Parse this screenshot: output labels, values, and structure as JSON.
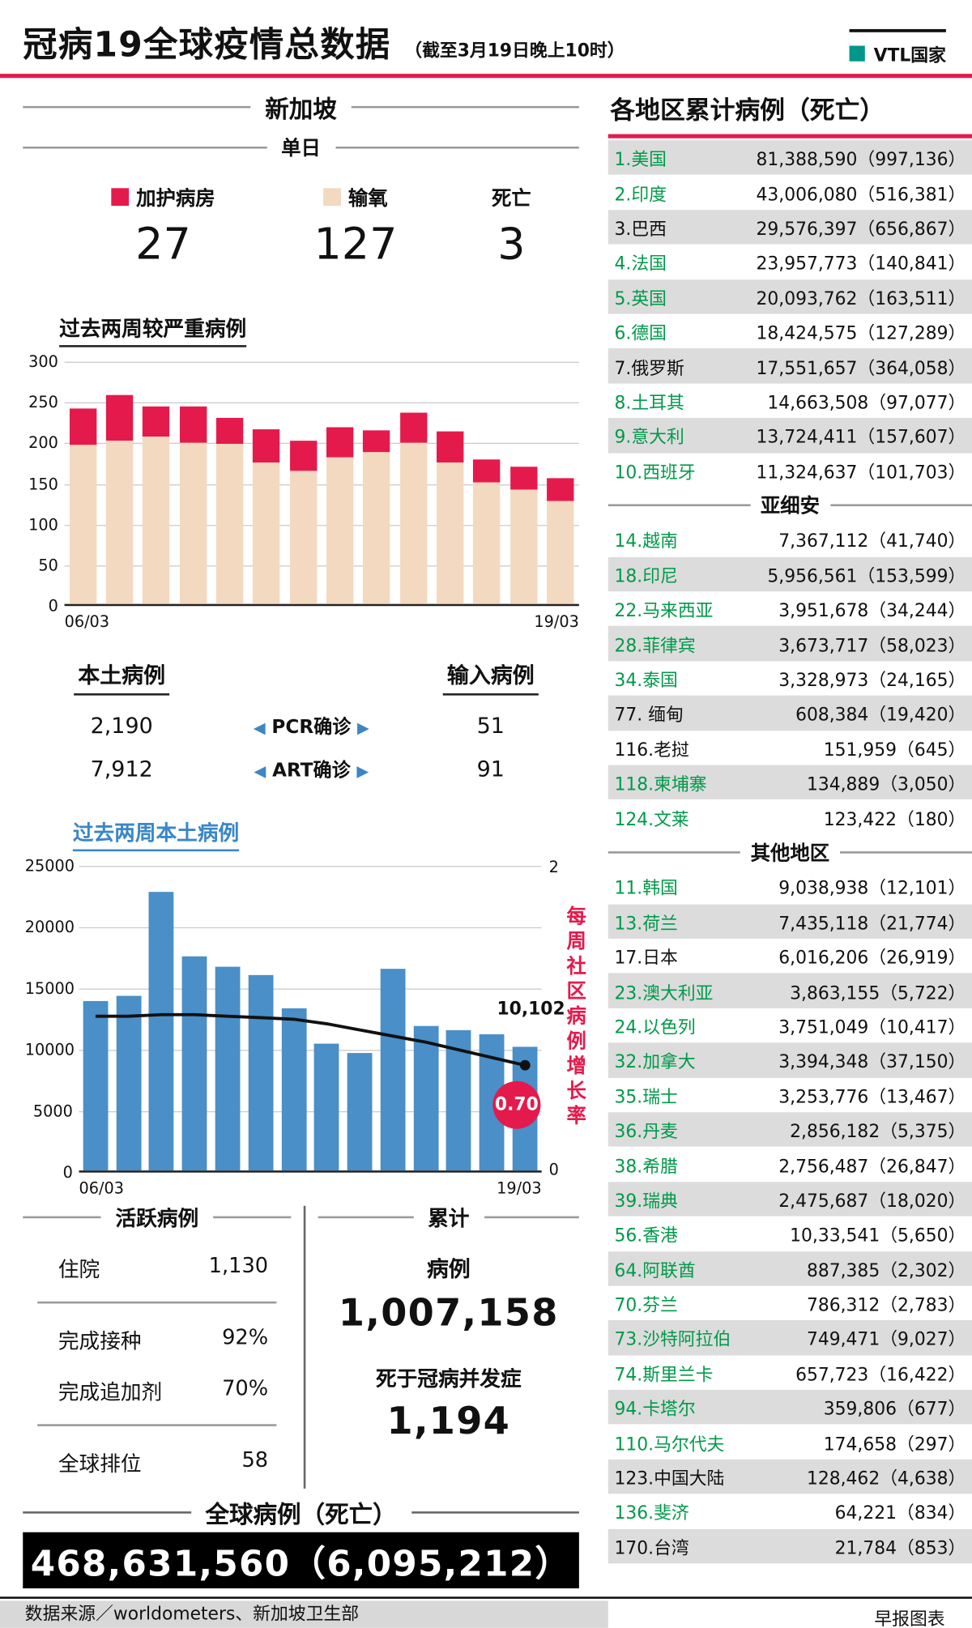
{
  "header": {
    "title": "冠病19全球疫情总数据",
    "subtitle": "（截至3月19日晚上10时）",
    "legend_label": "VTL国家"
  },
  "colors": {
    "accent_red": "#e51a4c",
    "oxygen_beige": "#f3d9bf",
    "bar_blue": "#4a8fc7",
    "arrow_blue": "#3d86c6",
    "vtl_green_text": "#009a49",
    "vtl_square": "#00968a",
    "stripe_gray": "#dcdcdc"
  },
  "singapore": {
    "section_title": "新加坡",
    "daily_title": "单日",
    "daily_stats": [
      {
        "label": "加护病房",
        "value": "27",
        "color": "#e51a4c",
        "icon": "icu-legend-square"
      },
      {
        "label": "输氧",
        "value": "127",
        "color": "#f3d9bf",
        "icon": "oxygen-legend-square"
      },
      {
        "label": "死亡",
        "value": "3"
      }
    ],
    "cases": {
      "local_title": "本土病例",
      "imported_title": "输入病例",
      "arrow_left": "◀",
      "arrow_right": "▶",
      "rows": [
        {
          "local": "2,190",
          "label": "PCR确诊",
          "imported": "51"
        },
        {
          "local": "7,912",
          "label": "ART确诊",
          "imported": "91"
        }
      ]
    },
    "active": {
      "title": "活跃病例",
      "groups": [
        [
          {
            "label": "住院",
            "value": "1,130"
          }
        ],
        [
          {
            "label": "完成接种",
            "value": "92%"
          },
          {
            "label": "完成追加剂",
            "value": "70%"
          }
        ],
        [
          {
            "label": "全球排位",
            "value": "58"
          }
        ]
      ]
    },
    "cumulative": {
      "title": "累计",
      "cases_label": "病例",
      "cases_value": "1,007,158",
      "deaths_label": "死于冠病并发症",
      "deaths_value": "1,194"
    },
    "global": {
      "title": "全球病例（死亡）",
      "value": "468,631,560（6,095,212）"
    }
  },
  "chart_data": [
    {
      "type": "bar",
      "stacked": true,
      "title": "过去两周较严重病例",
      "categories": [
        "06/03",
        "07/03",
        "08/03",
        "09/03",
        "10/03",
        "11/03",
        "12/03",
        "13/03",
        "14/03",
        "15/03",
        "16/03",
        "17/03",
        "18/03",
        "19/03"
      ],
      "series": [
        {
          "name": "输氧",
          "color": "#f3d9bf",
          "values": [
            195,
            200,
            205,
            198,
            196,
            173,
            163,
            180,
            186,
            198,
            173,
            150,
            140,
            127
          ]
        },
        {
          "name": "加护病房",
          "color": "#e51a4c",
          "values": [
            45,
            57,
            38,
            44,
            32,
            41,
            38,
            37,
            27,
            37,
            39,
            28,
            28,
            27
          ]
        }
      ],
      "ylim": [
        0,
        300
      ],
      "yticks": [
        0,
        50,
        100,
        150,
        200,
        250,
        300
      ],
      "grid": true,
      "x_axis_labels_shown": [
        "06/03",
        "19/03"
      ]
    },
    {
      "type": "bar+line",
      "title": "过去两周本土病例",
      "categories": [
        "06/03",
        "07/03",
        "08/03",
        "09/03",
        "10/03",
        "11/03",
        "12/03",
        "13/03",
        "14/03",
        "15/03",
        "16/03",
        "17/03",
        "18/03",
        "19/03"
      ],
      "bar_series": {
        "name": "本土病例",
        "color": "#4a8fc7",
        "values": [
          13800,
          14200,
          22700,
          17500,
          16600,
          15900,
          13200,
          10300,
          9600,
          16400,
          11800,
          11400,
          11100,
          10102
        ]
      },
      "line_series": {
        "name": "每周社区病例增长率",
        "color": "#111111",
        "values": [
          1.02,
          1.02,
          1.03,
          1.03,
          1.02,
          1.01,
          1.0,
          0.97,
          0.93,
          0.89,
          0.85,
          0.8,
          0.75,
          0.7
        ]
      },
      "ylim_left": [
        0,
        25000
      ],
      "yticks_left": [
        0,
        5000,
        10000,
        15000,
        20000,
        25000
      ],
      "ylim_right": [
        0,
        2
      ],
      "yticks_right": [
        0,
        2
      ],
      "right_axis_title": "每周社区病例增长率",
      "grid": true,
      "annotations": [
        {
          "text": "10,102",
          "meaning": "last-day local cases"
        },
        {
          "text": "0.70",
          "meaning": "weekly community case growth rate",
          "style": "red-circle"
        }
      ],
      "x_axis_labels_shown": [
        "06/03",
        "19/03"
      ]
    }
  ],
  "regions": {
    "title": "各地区累计病例（死亡）",
    "groups": [
      {
        "header": null,
        "rows": [
          {
            "name": "1.美国",
            "value": "81,388,590（997,136）",
            "vtl": true,
            "shade": true
          },
          {
            "name": "2.印度",
            "value": "43,006,080（516,381）",
            "vtl": true,
            "shade": false
          },
          {
            "name": "3.巴西",
            "value": "29,576,397（656,867）",
            "vtl": false,
            "shade": true
          },
          {
            "name": "4.法国",
            "value": "23,957,773（140,841）",
            "vtl": true,
            "shade": false
          },
          {
            "name": "5.英国",
            "value": "20,093,762（163,511）",
            "vtl": true,
            "shade": true
          },
          {
            "name": "6.德国",
            "value": "18,424,575（127,289）",
            "vtl": true,
            "shade": false
          },
          {
            "name": "7.俄罗斯",
            "value": "17,551,657（364,058）",
            "vtl": false,
            "shade": true
          },
          {
            "name": "8.土耳其",
            "value": "14,663,508（97,077）",
            "vtl": true,
            "shade": false
          },
          {
            "name": "9.意大利",
            "value": "13,724,411（157,607）",
            "vtl": true,
            "shade": true
          },
          {
            "name": "10.西班牙",
            "value": "11,324,637（101,703）",
            "vtl": true,
            "shade": false
          }
        ]
      },
      {
        "header": "亚细安",
        "rows": [
          {
            "name": "14.越南",
            "value": "7,367,112（41,740）",
            "vtl": true,
            "shade": false
          },
          {
            "name": "18.印尼",
            "value": "5,956,561（153,599）",
            "vtl": true,
            "shade": true
          },
          {
            "name": "22.马来西亚",
            "value": "3,951,678（34,244）",
            "vtl": true,
            "shade": false
          },
          {
            "name": "28.菲律宾",
            "value": "3,673,717（58,023）",
            "vtl": true,
            "shade": true
          },
          {
            "name": "34.泰国",
            "value": "3,328,973（24,165）",
            "vtl": true,
            "shade": false
          },
          {
            "name": "77. 缅甸",
            "value": "608,384（19,420）",
            "vtl": false,
            "shade": true
          },
          {
            "name": "116.老挝",
            "value": "151,959（645）",
            "vtl": false,
            "shade": false
          },
          {
            "name": "118.柬埔寨",
            "value": "134,889（3,050）",
            "vtl": true,
            "shade": true
          },
          {
            "name": "124.文莱",
            "value": "123,422（180）",
            "vtl": true,
            "shade": false
          }
        ]
      },
      {
        "header": "其他地区",
        "rows": [
          {
            "name": "11.韩国",
            "value": "9,038,938（12,101）",
            "vtl": true,
            "shade": false
          },
          {
            "name": "13.荷兰",
            "value": "7,435,118（21,774）",
            "vtl": true,
            "shade": true
          },
          {
            "name": "17.日本",
            "value": "6,016,206（26,919）",
            "vtl": false,
            "shade": false
          },
          {
            "name": "23.澳大利亚",
            "value": "3,863,155（5,722）",
            "vtl": true,
            "shade": true
          },
          {
            "name": "24.以色列",
            "value": "3,751,049（10,417）",
            "vtl": true,
            "shade": false
          },
          {
            "name": "32.加拿大",
            "value": "3,394,348（37,150）",
            "vtl": true,
            "shade": true
          },
          {
            "name": "35.瑞士",
            "value": "3,253,776（13,467）",
            "vtl": true,
            "shade": false
          },
          {
            "name": "36.丹麦",
            "value": "2,856,182（5,375）",
            "vtl": true,
            "shade": true
          },
          {
            "name": "38.希腊",
            "value": "2,756,487（26,847）",
            "vtl": true,
            "shade": false
          },
          {
            "name": "39.瑞典",
            "value": "2,475,687（18,020）",
            "vtl": true,
            "shade": true
          },
          {
            "name": "56.香港",
            "value": "10,33,541（5,650）",
            "vtl": true,
            "shade": false
          },
          {
            "name": "64.阿联酋",
            "value": "887,385（2,302）",
            "vtl": true,
            "shade": true
          },
          {
            "name": "70.芬兰",
            "value": "786,312（2,783）",
            "vtl": true,
            "shade": false
          },
          {
            "name": "73.沙特阿拉伯",
            "value": "749,471（9,027）",
            "vtl": true,
            "shade": true
          },
          {
            "name": "74.斯里兰卡",
            "value": "657,723（16,422）",
            "vtl": true,
            "shade": false
          },
          {
            "name": "94.卡塔尔",
            "value": "359,806（677）",
            "vtl": true,
            "shade": true
          },
          {
            "name": "110.马尔代夫",
            "value": "174,658（297）",
            "vtl": true,
            "shade": false
          },
          {
            "name": "123.中国大陆",
            "value": "128,462（4,638）",
            "vtl": false,
            "shade": true
          },
          {
            "name": "136.斐济",
            "value": "64,221（834）",
            "vtl": true,
            "shade": false
          },
          {
            "name": "170.台湾",
            "value": "21,784（853）",
            "vtl": false,
            "shade": true
          }
        ]
      }
    ]
  },
  "footer": {
    "source": "数据来源／worldometers、新加坡卫生部",
    "credit": "早报图表"
  }
}
